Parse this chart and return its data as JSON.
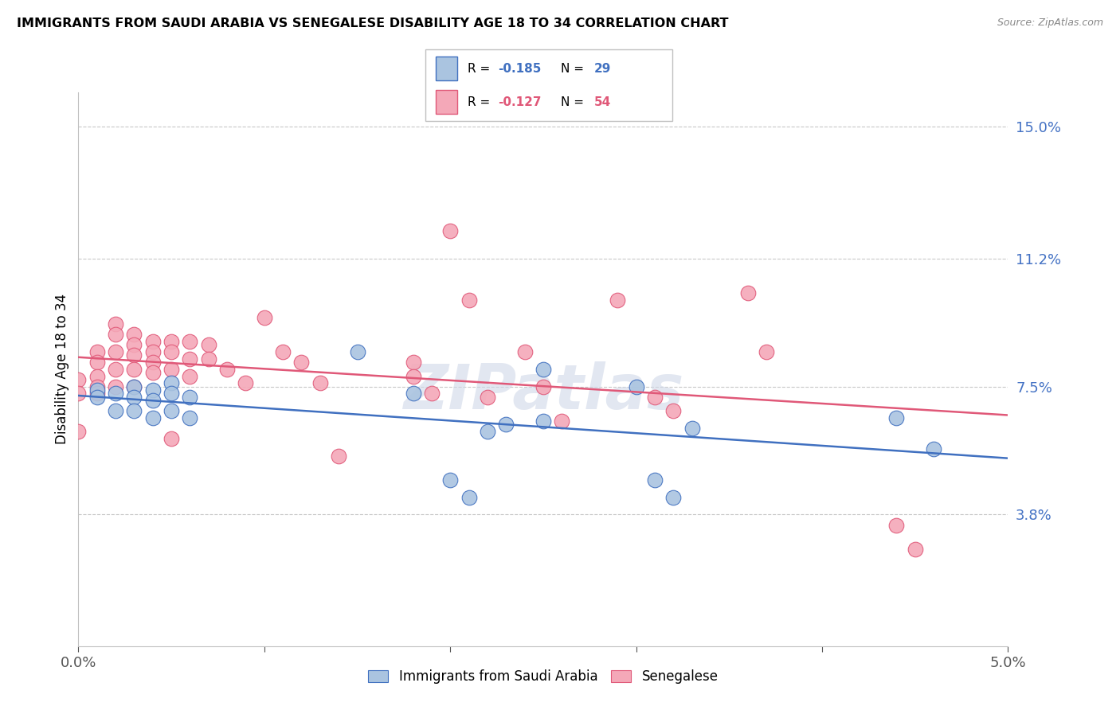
{
  "title": "IMMIGRANTS FROM SAUDI ARABIA VS SENEGALESE DISABILITY AGE 18 TO 34 CORRELATION CHART",
  "source": "Source: ZipAtlas.com",
  "ylabel": "Disability Age 18 to 34",
  "xlim": [
    0.0,
    0.05
  ],
  "ylim": [
    0.0,
    0.16
  ],
  "yticks": [
    0.038,
    0.075,
    0.112,
    0.15
  ],
  "ytick_labels": [
    "3.8%",
    "7.5%",
    "11.2%",
    "15.0%"
  ],
  "xticks": [
    0.0,
    0.01,
    0.02,
    0.03,
    0.04,
    0.05
  ],
  "xtick_labels": [
    "0.0%",
    "",
    "",
    "",
    "",
    "5.0%"
  ],
  "saudi_color": "#aac4e0",
  "senegal_color": "#f4a8b8",
  "saudi_line_color": "#4070c0",
  "senegal_line_color": "#e05878",
  "legend_saudi_r": "-0.185",
  "legend_saudi_n": "29",
  "legend_senegal_r": "-0.127",
  "legend_senegal_n": "54",
  "watermark": "ZIPatlas",
  "saudi_x": [
    0.001,
    0.001,
    0.002,
    0.002,
    0.003,
    0.003,
    0.003,
    0.004,
    0.004,
    0.004,
    0.005,
    0.005,
    0.005,
    0.006,
    0.006,
    0.015,
    0.018,
    0.02,
    0.021,
    0.022,
    0.023,
    0.025,
    0.025,
    0.03,
    0.031,
    0.032,
    0.033,
    0.044,
    0.046
  ],
  "saudi_y": [
    0.074,
    0.072,
    0.073,
    0.068,
    0.075,
    0.072,
    0.068,
    0.074,
    0.071,
    0.066,
    0.076,
    0.073,
    0.068,
    0.072,
    0.066,
    0.085,
    0.073,
    0.048,
    0.043,
    0.062,
    0.064,
    0.08,
    0.065,
    0.075,
    0.048,
    0.043,
    0.063,
    0.066,
    0.057
  ],
  "senegal_x": [
    0.0,
    0.0,
    0.0,
    0.001,
    0.001,
    0.001,
    0.001,
    0.001,
    0.002,
    0.002,
    0.002,
    0.002,
    0.002,
    0.003,
    0.003,
    0.003,
    0.003,
    0.003,
    0.004,
    0.004,
    0.004,
    0.004,
    0.005,
    0.005,
    0.005,
    0.005,
    0.006,
    0.006,
    0.006,
    0.007,
    0.007,
    0.008,
    0.009,
    0.01,
    0.011,
    0.012,
    0.013,
    0.014,
    0.018,
    0.018,
    0.019,
    0.02,
    0.021,
    0.022,
    0.024,
    0.025,
    0.026,
    0.029,
    0.031,
    0.032,
    0.036,
    0.037,
    0.044,
    0.045
  ],
  "senegal_y": [
    0.077,
    0.073,
    0.062,
    0.085,
    0.082,
    0.078,
    0.075,
    0.073,
    0.093,
    0.09,
    0.085,
    0.08,
    0.075,
    0.09,
    0.087,
    0.084,
    0.08,
    0.075,
    0.088,
    0.085,
    0.082,
    0.079,
    0.088,
    0.085,
    0.08,
    0.06,
    0.088,
    0.083,
    0.078,
    0.087,
    0.083,
    0.08,
    0.076,
    0.095,
    0.085,
    0.082,
    0.076,
    0.055,
    0.082,
    0.078,
    0.073,
    0.12,
    0.1,
    0.072,
    0.085,
    0.075,
    0.065,
    0.1,
    0.072,
    0.068,
    0.102,
    0.085,
    0.035,
    0.028
  ]
}
